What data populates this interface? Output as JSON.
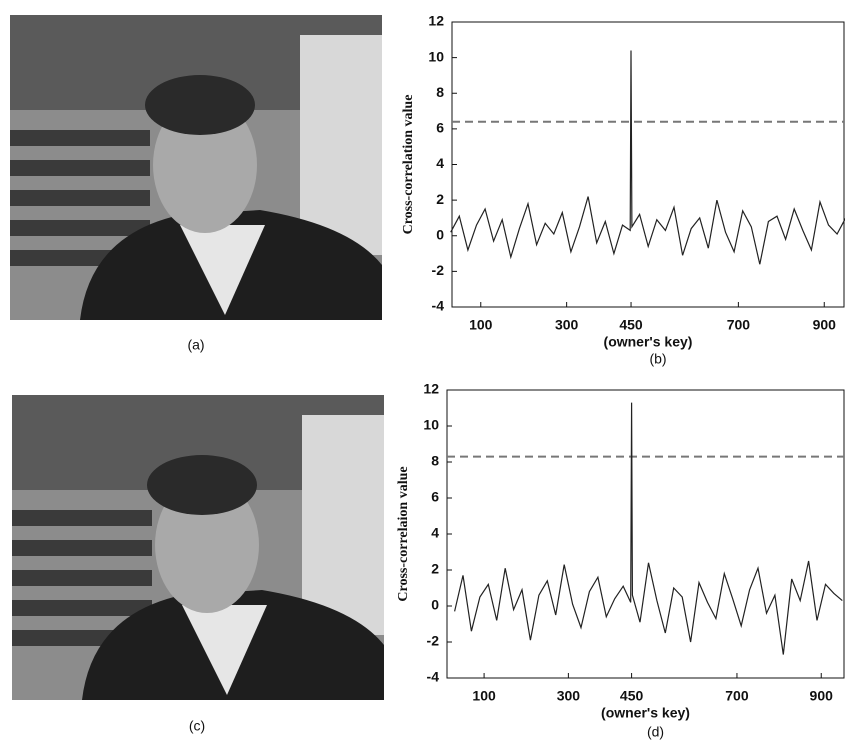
{
  "images": [
    {
      "caption": "(a)"
    },
    {
      "caption": "(c)"
    }
  ],
  "chart_data": [
    {
      "type": "line",
      "caption": "(b)",
      "y_label": "Cross-correlation value",
      "x_label": "(owner's key)",
      "xlim": [
        33,
        946
      ],
      "ylim": [
        -4,
        12
      ],
      "xticks": [
        100,
        300,
        450,
        700,
        900
      ],
      "yticks": [
        -4,
        -2,
        0,
        2,
        4,
        6,
        8,
        10,
        12
      ],
      "threshold": 6.4,
      "color": "#222222",
      "threshold_color": "#777777",
      "x": [
        30,
        50,
        70,
        90,
        110,
        130,
        150,
        170,
        190,
        210,
        230,
        250,
        270,
        290,
        310,
        330,
        350,
        370,
        390,
        410,
        430,
        448,
        450,
        452,
        470,
        490,
        510,
        530,
        550,
        570,
        590,
        610,
        630,
        650,
        670,
        690,
        710,
        730,
        750,
        770,
        790,
        810,
        830,
        850,
        870,
        890,
        910,
        930,
        950
      ],
      "values": [
        0.2,
        1.1,
        -0.8,
        0.6,
        1.5,
        -0.3,
        0.9,
        -1.2,
        0.4,
        1.8,
        -0.5,
        0.7,
        0.1,
        1.3,
        -0.9,
        0.5,
        2.2,
        -0.4,
        0.8,
        -1.0,
        0.6,
        0.3,
        10.4,
        0.5,
        1.2,
        -0.6,
        0.9,
        0.3,
        1.6,
        -1.1,
        0.4,
        1.0,
        -0.7,
        2.0,
        0.2,
        -0.9,
        1.4,
        0.5,
        -1.6,
        0.8,
        1.1,
        -0.2,
        1.5,
        0.3,
        -0.8,
        1.9,
        0.6,
        0.1,
        1.0
      ]
    },
    {
      "type": "line",
      "caption": "(d)",
      "y_label": "Cross-correlaion value",
      "x_label": "(owner's key)",
      "xlim": [
        12,
        954
      ],
      "ylim": [
        -4,
        12
      ],
      "xticks": [
        100,
        300,
        450,
        700,
        900
      ],
      "yticks": [
        -4,
        -2,
        0,
        2,
        4,
        6,
        8,
        10,
        12
      ],
      "threshold": 8.3,
      "color": "#222222",
      "threshold_color": "#777777",
      "x": [
        30,
        50,
        70,
        90,
        110,
        130,
        150,
        170,
        190,
        210,
        230,
        250,
        270,
        290,
        310,
        330,
        350,
        370,
        390,
        410,
        430,
        448,
        450,
        452,
        470,
        490,
        510,
        530,
        550,
        570,
        590,
        610,
        630,
        650,
        670,
        690,
        710,
        730,
        750,
        770,
        790,
        810,
        830,
        850,
        870,
        890,
        910,
        930,
        950
      ],
      "values": [
        -0.3,
        1.7,
        -1.4,
        0.5,
        1.2,
        -0.8,
        2.1,
        -0.2,
        0.9,
        -1.9,
        0.6,
        1.4,
        -0.5,
        2.3,
        0.1,
        -1.2,
        0.8,
        1.6,
        -0.6,
        0.4,
        1.1,
        0.2,
        11.3,
        0.6,
        -0.9,
        2.4,
        0.3,
        -1.5,
        1.0,
        0.5,
        -2.0,
        1.3,
        0.2,
        -0.7,
        1.8,
        0.4,
        -1.1,
        0.9,
        2.1,
        -0.4,
        0.6,
        -2.7,
        1.5,
        0.3,
        2.5,
        -0.8,
        1.2,
        0.7,
        0.3
      ]
    }
  ]
}
